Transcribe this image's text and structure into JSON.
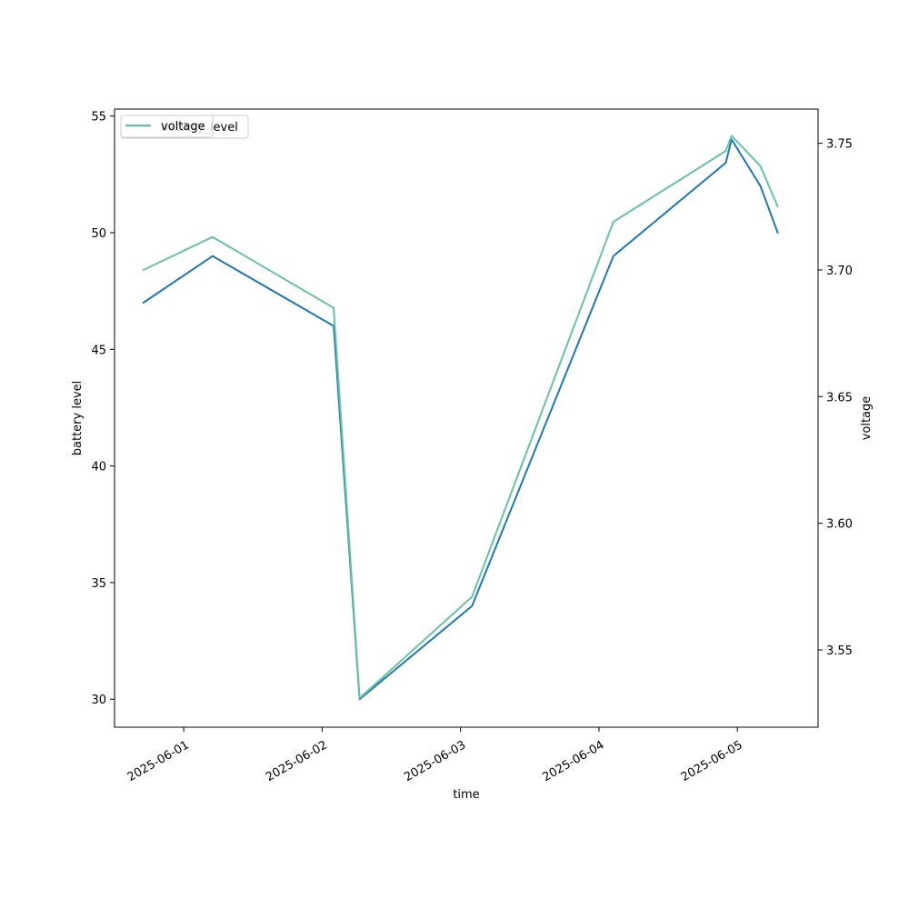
{
  "chart_data": {
    "type": "line",
    "title": "",
    "xlabel": "time",
    "ylabel": "battery level",
    "y2label": "voltage",
    "x_type": "datetime",
    "xlim": [
      "2025-05-31 12:00",
      "2025-06-05 14:00"
    ],
    "ylim": [
      28.8,
      55.3
    ],
    "y2lim": [
      3.5195,
      3.7635
    ],
    "x_ticks": [
      "2025-06-01",
      "2025-06-02",
      "2025-06-03",
      "2025-06-04",
      "2025-06-05"
    ],
    "y_ticks": [
      30,
      35,
      40,
      45,
      50,
      55
    ],
    "y2_ticks": [
      3.55,
      3.6,
      3.65,
      3.7,
      3.75
    ],
    "y2_tick_labels": [
      "3.55",
      "3.60",
      "3.65",
      "3.70",
      "3.75"
    ],
    "grid": false,
    "legend": [
      {
        "label": "battery_level",
        "placement": "upper-left"
      },
      {
        "label": "voltage",
        "placement": "upper-left"
      }
    ],
    "series": [
      {
        "name": "battery_level",
        "axis": "left",
        "color": "#1f77b4",
        "points": [
          {
            "x": "2025-05-31 17:00",
            "y": 47
          },
          {
            "x": "2025-06-01 05:00",
            "y": 49
          },
          {
            "x": "2025-06-02 02:00",
            "y": 46
          },
          {
            "x": "2025-06-02 06:30",
            "y": 30
          },
          {
            "x": "2025-06-03 02:00",
            "y": 34
          },
          {
            "x": "2025-06-04 02:30",
            "y": 49
          },
          {
            "x": "2025-06-04 22:00",
            "y": 53
          },
          {
            "x": "2025-06-04 23:00",
            "y": 54
          },
          {
            "x": "2025-06-05 04:00",
            "y": 52
          },
          {
            "x": "2025-06-05 07:00",
            "y": 50
          }
        ]
      },
      {
        "name": "voltage",
        "axis": "right",
        "color": "#66c2a5",
        "points": [
          {
            "x": "2025-05-31 17:00",
            "y": 3.7
          },
          {
            "x": "2025-06-01 05:00",
            "y": 3.713
          },
          {
            "x": "2025-06-02 02:00",
            "y": 3.685
          },
          {
            "x": "2025-06-02 06:30",
            "y": 3.531
          },
          {
            "x": "2025-06-03 02:00",
            "y": 3.571
          },
          {
            "x": "2025-06-04 02:30",
            "y": 3.719
          },
          {
            "x": "2025-06-04 22:00",
            "y": 3.747
          },
          {
            "x": "2025-06-04 23:00",
            "y": 3.753
          },
          {
            "x": "2025-06-05 04:00",
            "y": 3.741
          },
          {
            "x": "2025-06-05 07:00",
            "y": 3.725
          }
        ]
      }
    ]
  }
}
